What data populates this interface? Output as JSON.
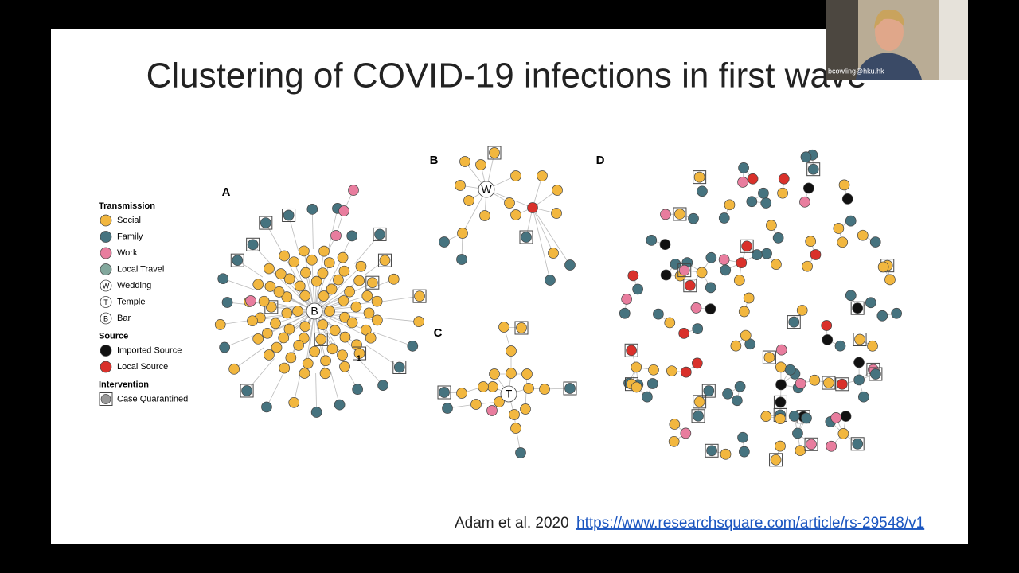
{
  "video": {
    "presenter_label": "bcowling@hku.hk"
  },
  "slide": {
    "title": "Clustering of COVID-19 infections in first wave",
    "panels": [
      "A",
      "B",
      "C",
      "D"
    ],
    "hub_labels": [
      "B",
      "W",
      "T"
    ],
    "annotation": "1",
    "legend": [
      {
        "heading": "Transmission",
        "items": [
          {
            "label": "Social"
          },
          {
            "label": "Family"
          },
          {
            "label": "Work"
          },
          {
            "label": "Local Travel"
          },
          {
            "label": "Wedding",
            "icon": "W"
          },
          {
            "label": "Temple",
            "icon": "T"
          },
          {
            "label": "Bar",
            "icon": "B"
          }
        ]
      },
      {
        "heading": "Source",
        "items": [
          {
            "label": "Imported Source"
          },
          {
            "label": "Local Source"
          }
        ]
      },
      {
        "heading": "Intervention",
        "items": [
          {
            "label": "Case Quarantined"
          }
        ]
      }
    ],
    "citation": {
      "text": "Adam et al. 2020",
      "link": "https://www.researchsquare.com/article/rs-29548/v1"
    }
  }
}
